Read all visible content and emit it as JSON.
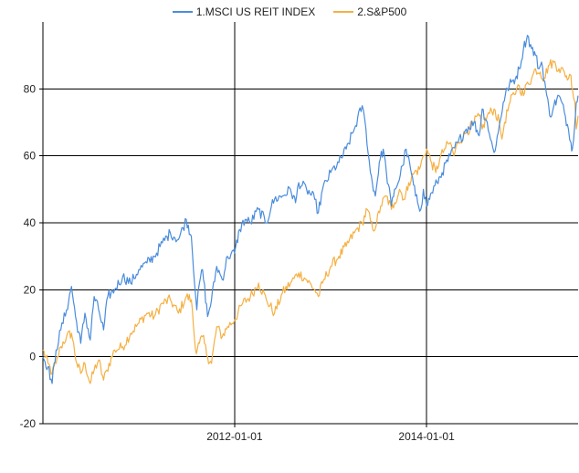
{
  "chart_data": {
    "type": "line",
    "title": "",
    "xlabel": "",
    "ylabel": "",
    "x_range": [
      "2010-01-01",
      "2015-08-01"
    ],
    "x_ticks": [
      "2012-01-01",
      "2014-01-01"
    ],
    "ylim": [
      -20,
      100
    ],
    "y_ticks": [
      "-20",
      "0",
      "20",
      "40",
      "60",
      "80"
    ],
    "grid": true,
    "legend_position": "top",
    "series": [
      {
        "name": "1.MSCI US REIT INDEX",
        "color": "#4a8cdc",
        "points": [
          [
            "2010-01-01",
            0
          ],
          [
            "2010-01-20",
            -3
          ],
          [
            "2010-02-05",
            -8
          ],
          [
            "2010-02-20",
            2
          ],
          [
            "2010-03-10",
            8
          ],
          [
            "2010-04-01",
            14
          ],
          [
            "2010-04-20",
            21
          ],
          [
            "2010-05-05",
            12
          ],
          [
            "2010-05-25",
            4
          ],
          [
            "2010-06-10",
            13
          ],
          [
            "2010-06-30",
            5
          ],
          [
            "2010-07-15",
            18
          ],
          [
            "2010-08-01",
            14
          ],
          [
            "2010-08-20",
            8
          ],
          [
            "2010-09-05",
            18
          ],
          [
            "2010-10-01",
            20
          ],
          [
            "2010-11-01",
            24
          ],
          [
            "2010-12-01",
            22
          ],
          [
            "2011-01-01",
            26
          ],
          [
            "2011-02-01",
            28
          ],
          [
            "2011-03-01",
            30
          ],
          [
            "2011-04-01",
            34
          ],
          [
            "2011-05-01",
            37
          ],
          [
            "2011-06-01",
            35
          ],
          [
            "2011-07-01",
            41
          ],
          [
            "2011-07-20",
            36
          ],
          [
            "2011-08-10",
            14
          ],
          [
            "2011-08-20",
            22
          ],
          [
            "2011-09-01",
            26
          ],
          [
            "2011-09-20",
            12
          ],
          [
            "2011-10-05",
            17
          ],
          [
            "2011-10-25",
            27
          ],
          [
            "2011-11-15",
            23
          ],
          [
            "2011-12-05",
            30
          ],
          [
            "2012-01-01",
            31
          ],
          [
            "2012-01-20",
            38
          ],
          [
            "2012-02-10",
            41
          ],
          [
            "2012-03-01",
            40
          ],
          [
            "2012-04-01",
            44
          ],
          [
            "2012-05-01",
            40
          ],
          [
            "2012-05-20",
            45
          ],
          [
            "2012-06-01",
            47
          ],
          [
            "2012-07-01",
            48
          ],
          [
            "2012-08-01",
            50
          ],
          [
            "2012-08-20",
            46
          ],
          [
            "2012-09-01",
            52
          ],
          [
            "2012-10-01",
            50
          ],
          [
            "2012-11-01",
            47
          ],
          [
            "2012-11-15",
            43
          ],
          [
            "2012-12-01",
            50
          ],
          [
            "2013-01-01",
            55
          ],
          [
            "2013-02-01",
            58
          ],
          [
            "2013-03-01",
            62
          ],
          [
            "2013-04-01",
            68
          ],
          [
            "2013-05-01",
            75
          ],
          [
            "2013-05-15",
            68
          ],
          [
            "2013-06-01",
            55
          ],
          [
            "2013-06-20",
            48
          ],
          [
            "2013-07-05",
            58
          ],
          [
            "2013-07-20",
            62
          ],
          [
            "2013-08-01",
            55
          ],
          [
            "2013-08-20",
            45
          ],
          [
            "2013-09-01",
            50
          ],
          [
            "2013-09-15",
            52
          ],
          [
            "2013-10-01",
            57
          ],
          [
            "2013-10-15",
            62
          ],
          [
            "2013-11-01",
            56
          ],
          [
            "2013-11-20",
            48
          ],
          [
            "2013-12-10",
            44
          ],
          [
            "2013-12-20",
            50
          ],
          [
            "2014-01-01",
            45
          ],
          [
            "2014-01-20",
            49
          ],
          [
            "2014-02-10",
            52
          ],
          [
            "2014-03-01",
            55
          ],
          [
            "2014-04-01",
            60
          ],
          [
            "2014-05-01",
            64
          ],
          [
            "2014-06-01",
            68
          ],
          [
            "2014-07-01",
            70
          ],
          [
            "2014-07-20",
            66
          ],
          [
            "2014-08-01",
            74
          ],
          [
            "2014-08-20",
            70
          ],
          [
            "2014-09-01",
            65
          ],
          [
            "2014-09-15",
            61
          ],
          [
            "2014-10-01",
            67
          ],
          [
            "2014-10-20",
            76
          ],
          [
            "2014-11-05",
            80
          ],
          [
            "2014-11-20",
            82
          ],
          [
            "2014-12-05",
            83
          ],
          [
            "2014-12-20",
            86
          ],
          [
            "2015-01-05",
            92
          ],
          [
            "2015-01-20",
            96
          ],
          [
            "2015-02-05",
            92
          ],
          [
            "2015-02-20",
            90
          ],
          [
            "2015-03-05",
            86
          ],
          [
            "2015-03-15",
            88
          ],
          [
            "2015-03-31",
            80
          ],
          [
            "2015-04-15",
            72
          ],
          [
            "2015-05-01",
            75
          ],
          [
            "2015-05-20",
            78
          ],
          [
            "2015-06-10",
            73
          ],
          [
            "2015-06-25",
            68
          ],
          [
            "2015-07-05",
            64
          ],
          [
            "2015-07-10",
            62
          ],
          [
            "2015-07-20",
            70
          ],
          [
            "2015-07-25",
            76
          ],
          [
            "2015-08-01",
            78
          ]
        ]
      },
      {
        "name": "2.S&P500",
        "color": "#f5b043",
        "points": [
          [
            "2010-01-01",
            2
          ],
          [
            "2010-01-20",
            -2
          ],
          [
            "2010-02-05",
            -5
          ],
          [
            "2010-02-20",
            -2
          ],
          [
            "2010-03-10",
            3
          ],
          [
            "2010-04-01",
            6
          ],
          [
            "2010-04-20",
            7
          ],
          [
            "2010-05-10",
            -2
          ],
          [
            "2010-05-25",
            -5
          ],
          [
            "2010-06-10",
            -2
          ],
          [
            "2010-06-30",
            -8
          ],
          [
            "2010-07-15",
            -4
          ],
          [
            "2010-08-01",
            -1
          ],
          [
            "2010-08-20",
            -7
          ],
          [
            "2010-09-01",
            -4
          ],
          [
            "2010-10-01",
            2
          ],
          [
            "2010-11-01",
            3
          ],
          [
            "2010-12-01",
            7
          ],
          [
            "2011-01-01",
            10
          ],
          [
            "2011-02-01",
            13
          ],
          [
            "2011-03-01",
            12
          ],
          [
            "2011-04-01",
            16
          ],
          [
            "2011-05-01",
            17
          ],
          [
            "2011-06-01",
            13
          ],
          [
            "2011-07-01",
            18
          ],
          [
            "2011-07-20",
            17
          ],
          [
            "2011-08-05",
            2
          ],
          [
            "2011-08-20",
            4
          ],
          [
            "2011-09-01",
            6
          ],
          [
            "2011-09-20",
            0
          ],
          [
            "2011-10-05",
            -2
          ],
          [
            "2011-10-25",
            9
          ],
          [
            "2011-11-15",
            6
          ],
          [
            "2011-12-05",
            9
          ],
          [
            "2012-01-01",
            11
          ],
          [
            "2012-02-01",
            16
          ],
          [
            "2012-03-01",
            18
          ],
          [
            "2012-04-01",
            22
          ],
          [
            "2012-05-01",
            17
          ],
          [
            "2012-06-01",
            13
          ],
          [
            "2012-07-01",
            19
          ],
          [
            "2012-08-01",
            22
          ],
          [
            "2012-09-01",
            25
          ],
          [
            "2012-10-01",
            23
          ],
          [
            "2012-11-01",
            20
          ],
          [
            "2012-11-15",
            18
          ],
          [
            "2012-12-01",
            22
          ],
          [
            "2013-01-01",
            27
          ],
          [
            "2013-02-01",
            30
          ],
          [
            "2013-03-01",
            33
          ],
          [
            "2013-04-01",
            37
          ],
          [
            "2013-05-01",
            40
          ],
          [
            "2013-05-20",
            44
          ],
          [
            "2013-06-10",
            38
          ],
          [
            "2013-06-25",
            40
          ],
          [
            "2013-07-10",
            45
          ],
          [
            "2013-08-01",
            48
          ],
          [
            "2013-08-20",
            44
          ],
          [
            "2013-09-01",
            46
          ],
          [
            "2013-09-20",
            50
          ],
          [
            "2013-10-10",
            47
          ],
          [
            "2013-10-25",
            52
          ],
          [
            "2013-11-15",
            55
          ],
          [
            "2013-12-05",
            56
          ],
          [
            "2013-12-20",
            60
          ],
          [
            "2014-01-01",
            62
          ],
          [
            "2014-01-20",
            58
          ],
          [
            "2014-02-05",
            55
          ],
          [
            "2014-02-20",
            59
          ],
          [
            "2014-03-10",
            62
          ],
          [
            "2014-04-01",
            64
          ],
          [
            "2014-04-15",
            60
          ],
          [
            "2014-05-01",
            64
          ],
          [
            "2014-06-01",
            67
          ],
          [
            "2014-07-01",
            70
          ],
          [
            "2014-07-20",
            72
          ],
          [
            "2014-08-01",
            68
          ],
          [
            "2014-08-20",
            72
          ],
          [
            "2014-09-15",
            74
          ],
          [
            "2014-10-05",
            70
          ],
          [
            "2014-10-15",
            65
          ],
          [
            "2014-10-25",
            70
          ],
          [
            "2014-11-15",
            76
          ],
          [
            "2014-12-10",
            80
          ],
          [
            "2014-12-20",
            81
          ],
          [
            "2015-01-05",
            78
          ],
          [
            "2015-01-20",
            82
          ],
          [
            "2015-02-05",
            83
          ],
          [
            "2015-02-20",
            86
          ],
          [
            "2015-03-10",
            85
          ],
          [
            "2015-03-25",
            83
          ],
          [
            "2015-04-10",
            87
          ],
          [
            "2015-05-01",
            88
          ],
          [
            "2015-05-20",
            86
          ],
          [
            "2015-06-10",
            85
          ],
          [
            "2015-06-25",
            83
          ],
          [
            "2015-07-05",
            84
          ],
          [
            "2015-07-10",
            80
          ],
          [
            "2015-07-20",
            76
          ],
          [
            "2015-07-25",
            68
          ],
          [
            "2015-08-01",
            72
          ]
        ]
      }
    ]
  }
}
